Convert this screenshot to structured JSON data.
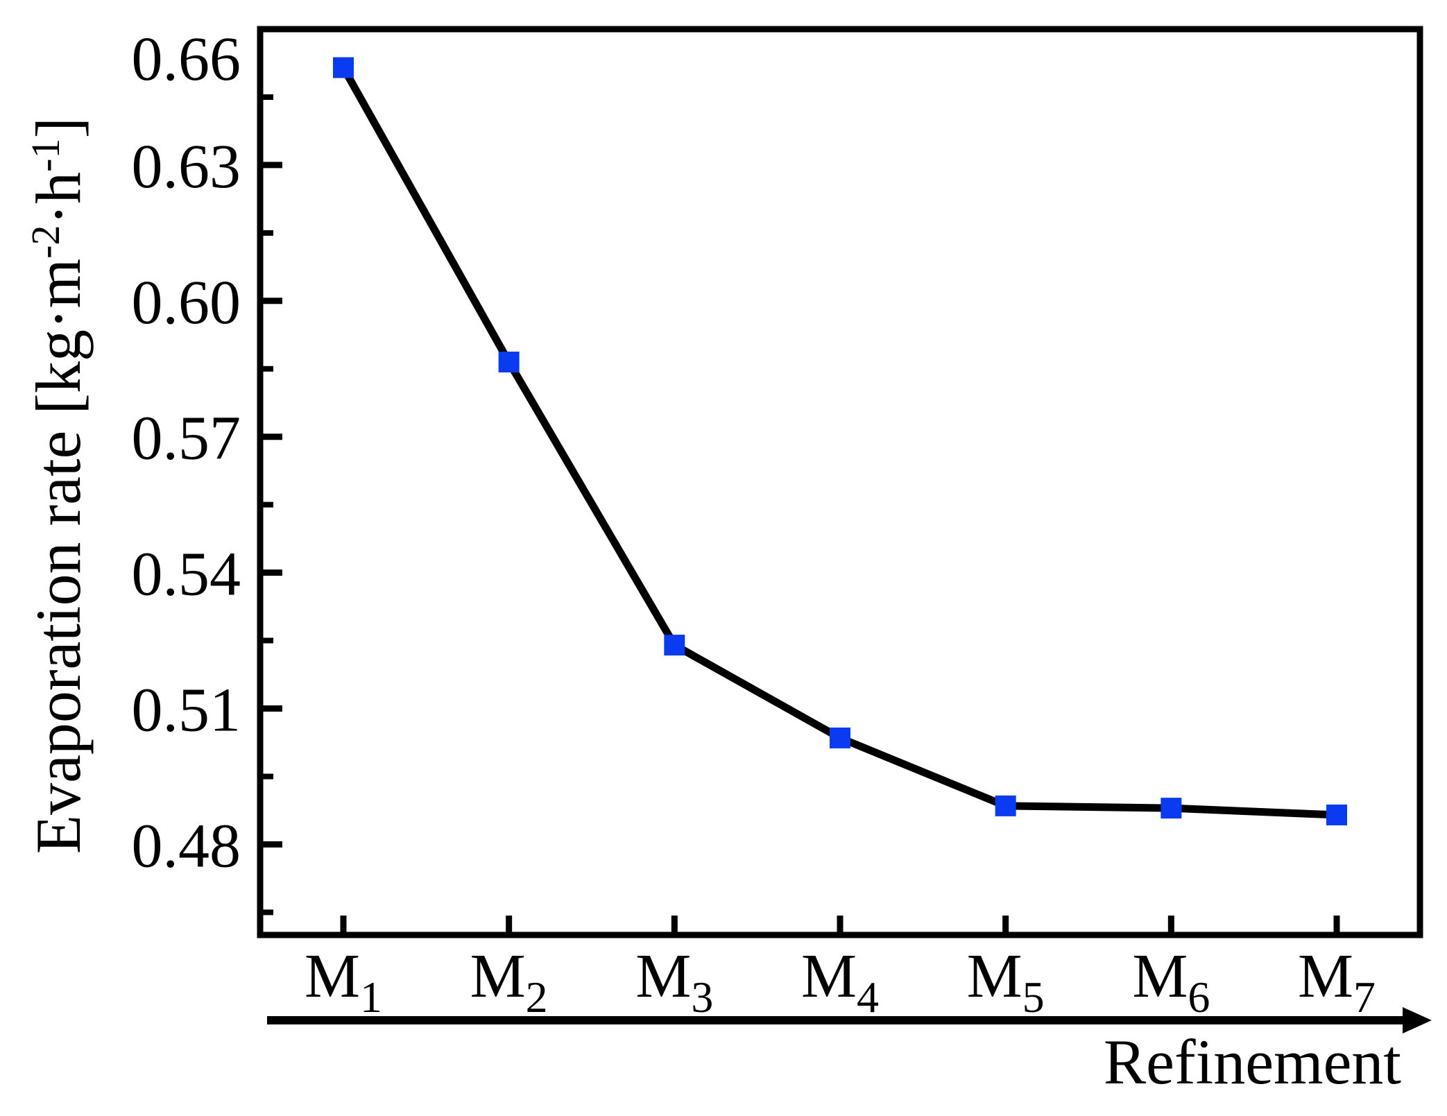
{
  "chart_data": {
    "type": "line",
    "title": "",
    "categories": [
      "M1",
      "M2",
      "M3",
      "M4",
      "M5",
      "M6",
      "M7"
    ],
    "category_labels": [
      {
        "base": "M",
        "sub": "1"
      },
      {
        "base": "M",
        "sub": "2"
      },
      {
        "base": "M",
        "sub": "3"
      },
      {
        "base": "M",
        "sub": "4"
      },
      {
        "base": "M",
        "sub": "5"
      },
      {
        "base": "M",
        "sub": "6"
      },
      {
        "base": "M",
        "sub": "7"
      }
    ],
    "series": [
      {
        "name": "Evaporation rate",
        "values": [
          0.6515,
          0.5865,
          0.524,
          0.5035,
          0.4885,
          0.488,
          0.4865
        ]
      }
    ],
    "xlabel": "Refinement",
    "ylabel": "Evaporation rate [kg·m⁻²·h⁻¹]",
    "ylabel_parts": [
      {
        "text": "Evaporation rate [kg·m",
        "style": "normal"
      },
      {
        "text": "-2",
        "style": "sup"
      },
      {
        "text": "·h",
        "style": "normal"
      },
      {
        "text": "-1",
        "style": "sup"
      },
      {
        "text": "]",
        "style": "normal"
      }
    ],
    "ylim": [
      0.46,
      0.66
    ],
    "ytick_labels": [
      "0.48",
      "0.51",
      "0.54",
      "0.57",
      "0.60",
      "0.63",
      "0.66"
    ],
    "minor_ytick_step": 0.015,
    "grid": false,
    "legend": "none",
    "x_axis_arrow_direction": "right",
    "colors": {
      "line": "#000000",
      "marker": "#0a3bf0",
      "axis": "#000000"
    },
    "marker_shape": "square"
  }
}
